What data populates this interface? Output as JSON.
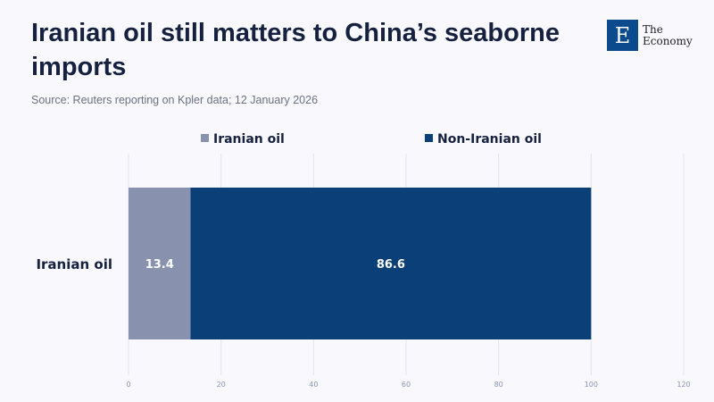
{
  "title": "Iranian oil still matters to China’s seaborne imports",
  "source": "Source: Reuters reporting on Kpler data; 12 January 2026",
  "logo": {
    "mark": "E",
    "line1": "The",
    "line2": "Economy"
  },
  "chart_data": {
    "type": "bar",
    "orientation": "horizontal",
    "stacked": true,
    "categories": [
      "Iranian oil"
    ],
    "series": [
      {
        "name": "Iranian oil",
        "values": [
          13.4
        ],
        "color": "#8891ad"
      },
      {
        "name": "Non-Iranian oil",
        "values": [
          86.6
        ],
        "color": "#0b3f77"
      }
    ],
    "xlim": [
      0,
      120
    ],
    "xticks": [
      0,
      20,
      40,
      60,
      80,
      100,
      120
    ],
    "grid": true,
    "legend": "top"
  }
}
